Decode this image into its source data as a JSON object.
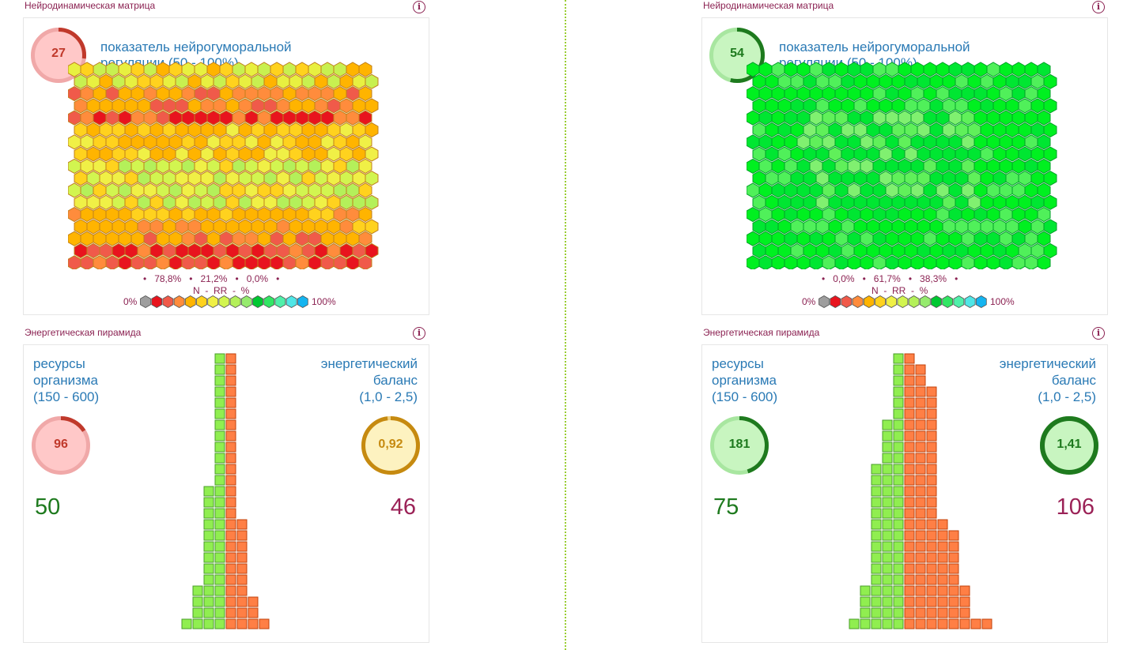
{
  "panels": [
    {
      "matrix": {
        "title": "Нейродинамическая матрица",
        "score": "27",
        "score_fraction": 0.27,
        "score_state": "low",
        "label_line1": "показатель нейрогуморальной",
        "label_line2": "регуляции (50 - 100%)",
        "stat_a": "78,8%",
        "stat_b": "21,2%",
        "stat_c": "0,0%",
        "mode": "warm"
      },
      "pyramid": {
        "title": "Энергетическая пирамида",
        "resources_line1": "ресурсы",
        "resources_line2": "организма",
        "resources_range": "(150 - 600)",
        "resources_value": "96",
        "resources_fraction": 0.16,
        "balance_line1": "энергетический",
        "balance_line2": "баланс",
        "balance_range": "(1,0 - 2,5)",
        "balance_value": "0,92",
        "balance_fraction": 0.98,
        "left_total": "50",
        "right_total": "46",
        "left_rows": [
          1,
          1,
          1,
          1,
          1,
          1,
          1,
          1,
          1,
          1,
          1,
          1,
          2,
          2,
          2,
          2,
          2,
          2,
          2,
          2,
          2,
          3,
          3,
          3,
          4
        ],
        "right_rows": [
          1,
          1,
          1,
          1,
          1,
          1,
          1,
          1,
          1,
          1,
          1,
          1,
          1,
          1,
          1,
          2,
          2,
          2,
          2,
          2,
          2,
          2,
          3,
          3,
          4
        ]
      }
    },
    {
      "matrix": {
        "title": "Нейродинамическая матрица",
        "score": "54",
        "score_fraction": 0.54,
        "score_state": "good",
        "label_line1": "показатель нейрогуморальной",
        "label_line2": "регуляции (50 - 100%)",
        "stat_a": "0,0%",
        "stat_b": "61,7%",
        "stat_c": "38,3%",
        "mode": "green"
      },
      "pyramid": {
        "title": "Энергетическая пирамида",
        "resources_line1": "ресурсы",
        "resources_line2": "организма",
        "resources_range": "(150 - 600)",
        "resources_value": "181",
        "resources_fraction": 0.45,
        "balance_line1": "энергетический",
        "balance_line2": "баланс",
        "balance_range": "(1,0 - 2,5)",
        "balance_value": "1,41",
        "balance_fraction": 1.0,
        "left_total": "75",
        "right_total": "106",
        "left_rows": [
          1,
          1,
          1,
          1,
          1,
          1,
          2,
          2,
          2,
          2,
          3,
          3,
          3,
          3,
          3,
          3,
          3,
          3,
          3,
          3,
          3,
          4,
          4,
          4,
          5
        ],
        "right_rows": [
          1,
          2,
          2,
          3,
          3,
          3,
          3,
          3,
          3,
          3,
          3,
          3,
          3,
          3,
          3,
          4,
          5,
          5,
          5,
          5,
          5,
          6,
          6,
          6,
          8
        ]
      }
    }
  ],
  "legend": {
    "caption": "N  -  RR  -  %",
    "min_label": "0%",
    "max_label": "100%",
    "scale_colors": [
      "#9e9e9e",
      "#e8141e",
      "#f05a4a",
      "#ff8c3c",
      "#ffb400",
      "#ffd21e",
      "#f0f046",
      "#d2f550",
      "#b4f05a",
      "#96eb6e",
      "#00c832",
      "#32e664",
      "#50f0aa",
      "#50e6e6",
      "#14b4f0"
    ]
  },
  "colors": {
    "title": "#8b2252",
    "label_blue": "#2a7ab5",
    "left_count": "#1e7a1e",
    "right_count": "#9b2257",
    "pyramid_green": "#90ee50",
    "pyramid_orange": "#ff7f45"
  }
}
